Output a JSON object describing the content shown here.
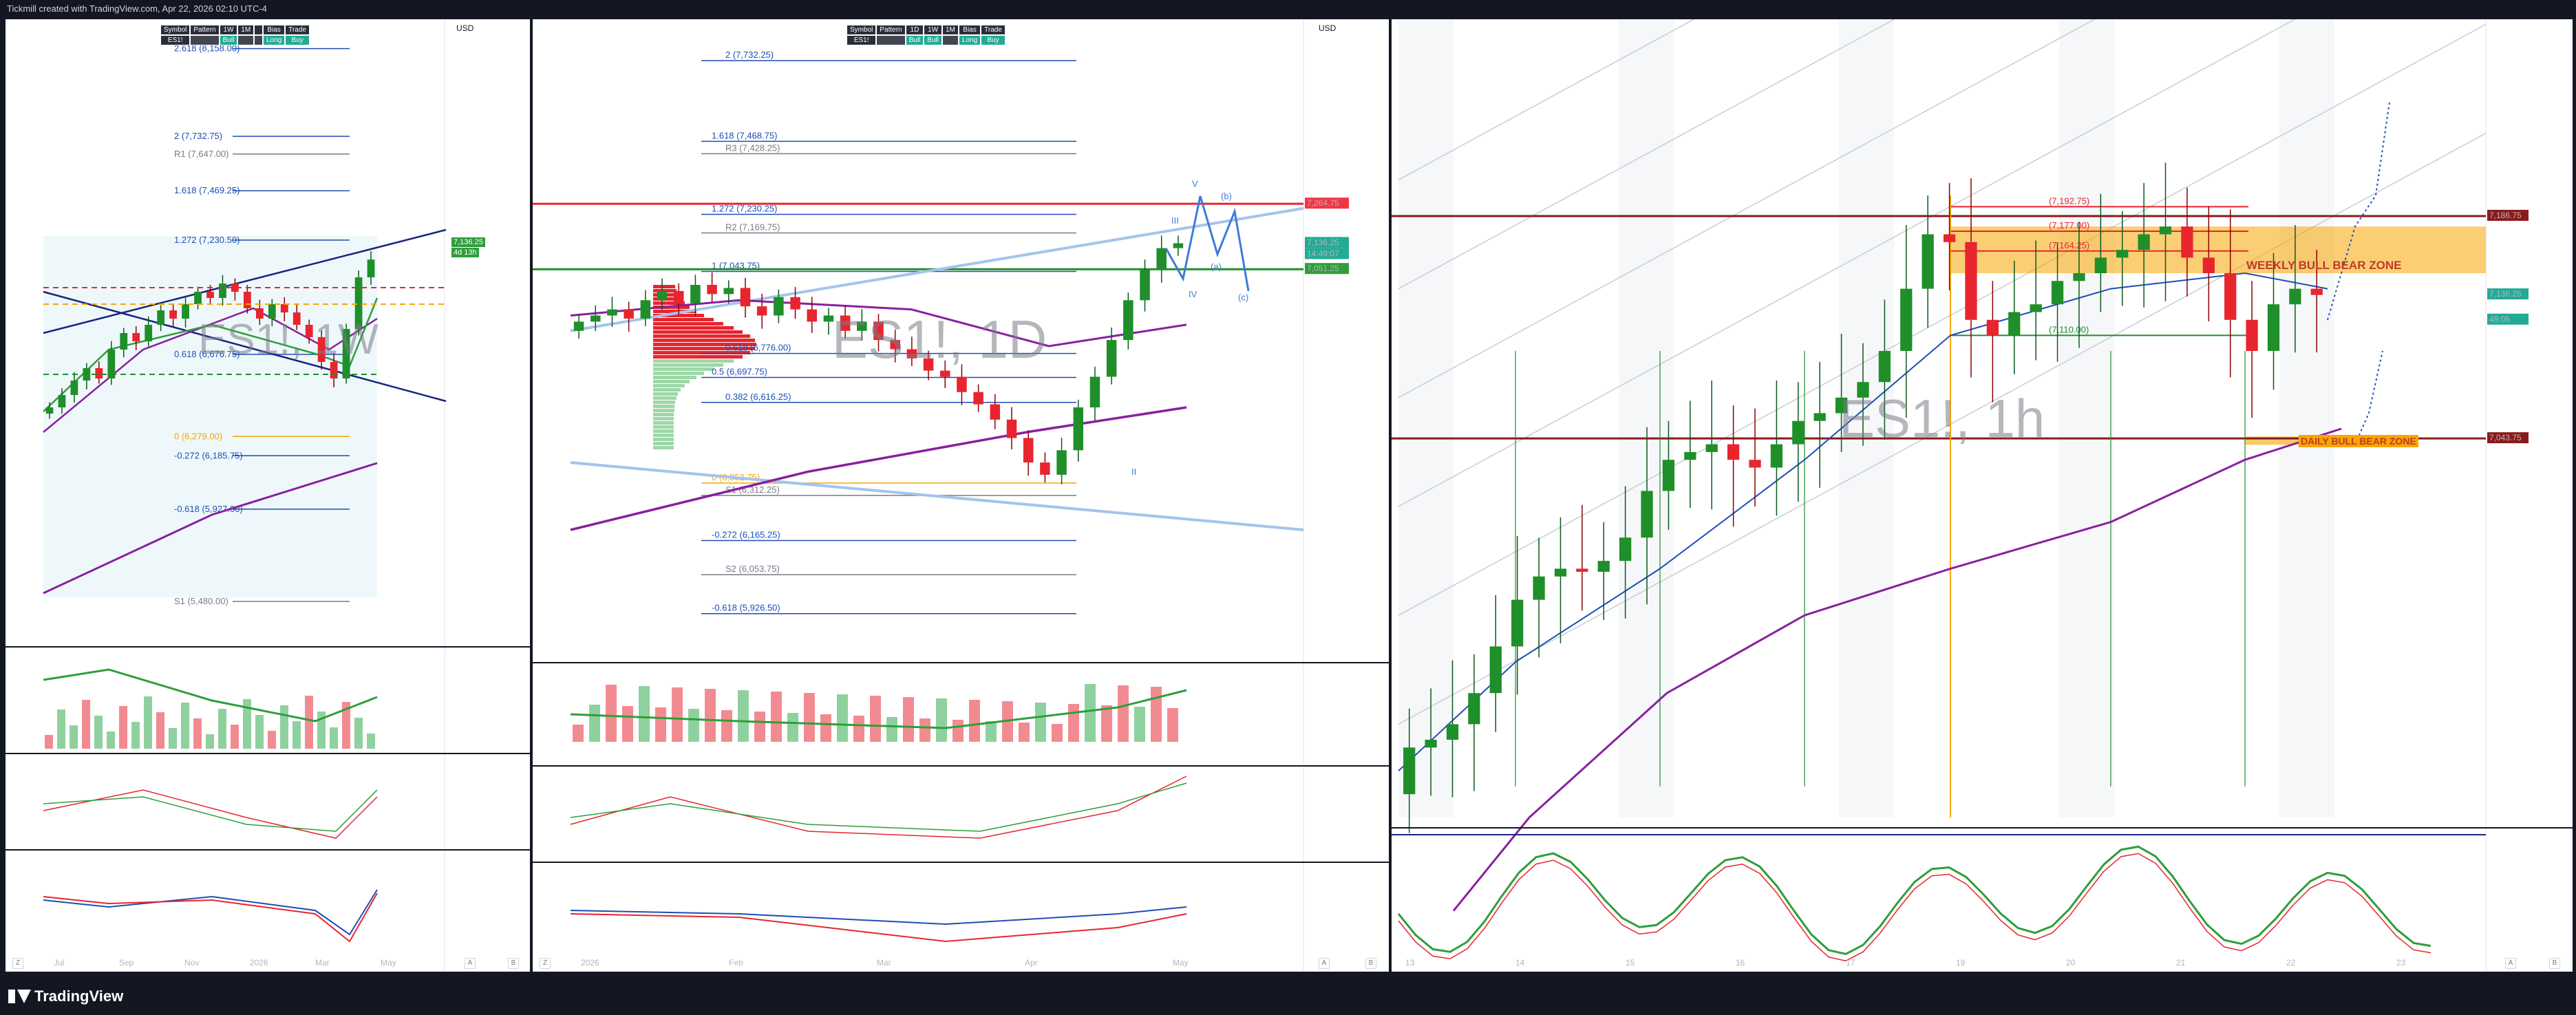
{
  "header": {
    "caption": "Tickmill created with TradingView.com, Apr 22, 2026 02:10 UTC-4"
  },
  "footer": {
    "brand": "TradingView"
  },
  "colors": {
    "background": "#131722",
    "bull": "#22ab94",
    "bear": "#f23645",
    "trend_green": "#2e9e3a",
    "ma_purple": "#8a1fa0",
    "fib_blue": "#1e4db7",
    "zone_orange": "#f7a600"
  },
  "panels": {
    "weekly": {
      "watermark": "ES1!, 1W",
      "currency": "USD",
      "table": {
        "headers": [
          "Symbol",
          "Pattern",
          "1W",
          "1M",
          "",
          "Bias",
          "Trade"
        ],
        "row": [
          "ES1!",
          "",
          "Bull",
          "",
          "",
          "Long",
          "Buy"
        ]
      },
      "fib_levels": [
        {
          "label": "2.618 (8,158.00)"
        },
        {
          "label": "2 (7,732.75)"
        },
        {
          "label": "R1 (7,647.00)"
        },
        {
          "label": "1.618 (7,469.25)"
        },
        {
          "label": "1.272 (7,230.50)"
        },
        {
          "label": "0.618 (6,676.75)"
        },
        {
          "label": "0 (6,279.00)"
        },
        {
          "label": "-0.272 (6,185.75)"
        },
        {
          "label": "-0.618 (5,927.00)"
        },
        {
          "label": "S1 (5,480.00)"
        }
      ],
      "last_price": "7,136.25",
      "countdown": "4d 13h",
      "x_ticks": [
        "Jul",
        "Sep",
        "Nov",
        "2026",
        "Mar",
        "May"
      ],
      "buttons": {
        "settings": "Z",
        "auto": "A",
        "bottom": "B"
      }
    },
    "daily": {
      "watermark": "ES1!, 1D",
      "currency": "USD",
      "table": {
        "headers": [
          "Symbol",
          "Pattern",
          "1D",
          "1W",
          "1M",
          "Bias",
          "Trade"
        ],
        "row": [
          "ES1!",
          "",
          "Bull",
          "Bull",
          "",
          "Long",
          "Buy"
        ]
      },
      "fib_levels": [
        {
          "label": "2 (7,732.25)"
        },
        {
          "label": "1.618 (7,468.75)"
        },
        {
          "label": "R3 (7,428.25)"
        },
        {
          "label": "1.272 (7,230.25)"
        },
        {
          "label": "R2 (7,169.75)"
        },
        {
          "label": "1 (7,043.75)"
        },
        {
          "label": "0.618 (6,776.00)"
        },
        {
          "label": "0.5 (6,697.75)"
        },
        {
          "label": "0.382 (6,616.25)"
        },
        {
          "label": "0 (6,352.75)"
        },
        {
          "label": "S1 (6,312.25)"
        },
        {
          "label": "-0.272 (6,165.25)"
        },
        {
          "label": "S2 (6,053.75)"
        },
        {
          "label": "-0.618 (5,926.50)"
        }
      ],
      "wave_labels": [
        "V",
        "(b)",
        "(a)",
        "(c)",
        "IV",
        "III",
        "II"
      ],
      "price_tags": [
        {
          "text": "7,264.75",
          "color": "#f23645"
        },
        {
          "text": "7,136.25",
          "color": "#22ab94"
        },
        {
          "text": "14:49:07",
          "color": "#22ab94"
        },
        {
          "text": "7,051.25",
          "color": "#2e9e3a"
        }
      ],
      "x_ticks": [
        "2026",
        "Feb",
        "Mar",
        "Apr",
        "May"
      ],
      "buttons": {
        "settings": "Z",
        "auto": "A",
        "bottom": "B"
      }
    },
    "hourly": {
      "watermark": "ES1!, 1h",
      "zones": [
        "WEEKLY BULL BEAR ZONE",
        "DAILY BULL BEAR ZONE"
      ],
      "levels": [
        {
          "label": "(7,192.75)"
        },
        {
          "label": "(7,177.00)"
        },
        {
          "label": "(7,164.25)"
        },
        {
          "label": "(7,110.00)"
        }
      ],
      "price_tags": [
        {
          "text": "7,186.75",
          "color": "#8b1a1a"
        },
        {
          "text": "7,136.25",
          "color": "#22ab94"
        },
        {
          "text": "49:05",
          "color": "#22ab94"
        },
        {
          "text": "7,043.75",
          "color": "#8b1a1a"
        }
      ],
      "x_ticks": [
        "13",
        "14",
        "15",
        "16",
        "17",
        "19",
        "20",
        "21",
        "22",
        "23"
      ],
      "buttons": {
        "auto": "A",
        "bottom": "B"
      }
    }
  },
  "chart_data": [
    {
      "type": "candlestick",
      "title": "ES1!, 1W",
      "ylim": [
        5300,
        8200
      ],
      "series": [
        {
          "name": "ES1!",
          "close": [
            6420,
            6480,
            6550,
            6610,
            6560,
            6700,
            6780,
            6740,
            6820,
            6890,
            6850,
            6920,
            6980,
            6950,
            7020,
            6980,
            6900,
            6850,
            6920,
            6880,
            6820,
            6760,
            6640,
            6560,
            6800,
            7050,
            7136
          ]
        }
      ],
      "horizontal_levels": [
        8158.0,
        7732.75,
        7647.0,
        7469.25,
        7230.5,
        6676.75,
        6279.0,
        6185.75,
        5927.0,
        5480.0
      ]
    },
    {
      "type": "candlestick",
      "title": "ES1!, 1D",
      "ylim": [
        5800,
        7800
      ],
      "series": [
        {
          "name": "ES1!",
          "close": [
            6880,
            6900,
            6920,
            6890,
            6950,
            6980,
            6940,
            7000,
            6970,
            6990,
            6930,
            6900,
            6960,
            6920,
            6880,
            6900,
            6850,
            6880,
            6820,
            6790,
            6760,
            6720,
            6700,
            6650,
            6610,
            6560,
            6500,
            6420,
            6380,
            6460,
            6600,
            6700,
            6820,
            6950,
            7050,
            7120,
            7136
          ]
        }
      ],
      "horizontal_levels": [
        7732.25,
        7468.75,
        7428.25,
        7264.75,
        7230.25,
        7169.75,
        7051.25,
        7043.75,
        6776.0,
        6697.75,
        6616.25,
        6352.75,
        6312.25,
        6165.25,
        6053.75,
        5926.5
      ]
    },
    {
      "type": "candlestick",
      "title": "ES1!, 1h",
      "ylim": [
        6800,
        7300
      ],
      "series": [
        {
          "name": "ES1!",
          "close": [
            6845,
            6850,
            6860,
            6880,
            6910,
            6940,
            6955,
            6960,
            6958,
            6965,
            6980,
            7010,
            7030,
            7035,
            7040,
            7030,
            7025,
            7040,
            7055,
            7060,
            7070,
            7080,
            7100,
            7140,
            7175,
            7170,
            7120,
            7110,
            7125,
            7130,
            7145,
            7150,
            7160,
            7165,
            7175,
            7180,
            7160,
            7150,
            7120,
            7100,
            7130,
            7140,
            7136
          ]
        }
      ],
      "horizontal_levels": [
        7192.75,
        7186.75,
        7177.0,
        7164.25,
        7110.0,
        7043.75
      ]
    }
  ]
}
